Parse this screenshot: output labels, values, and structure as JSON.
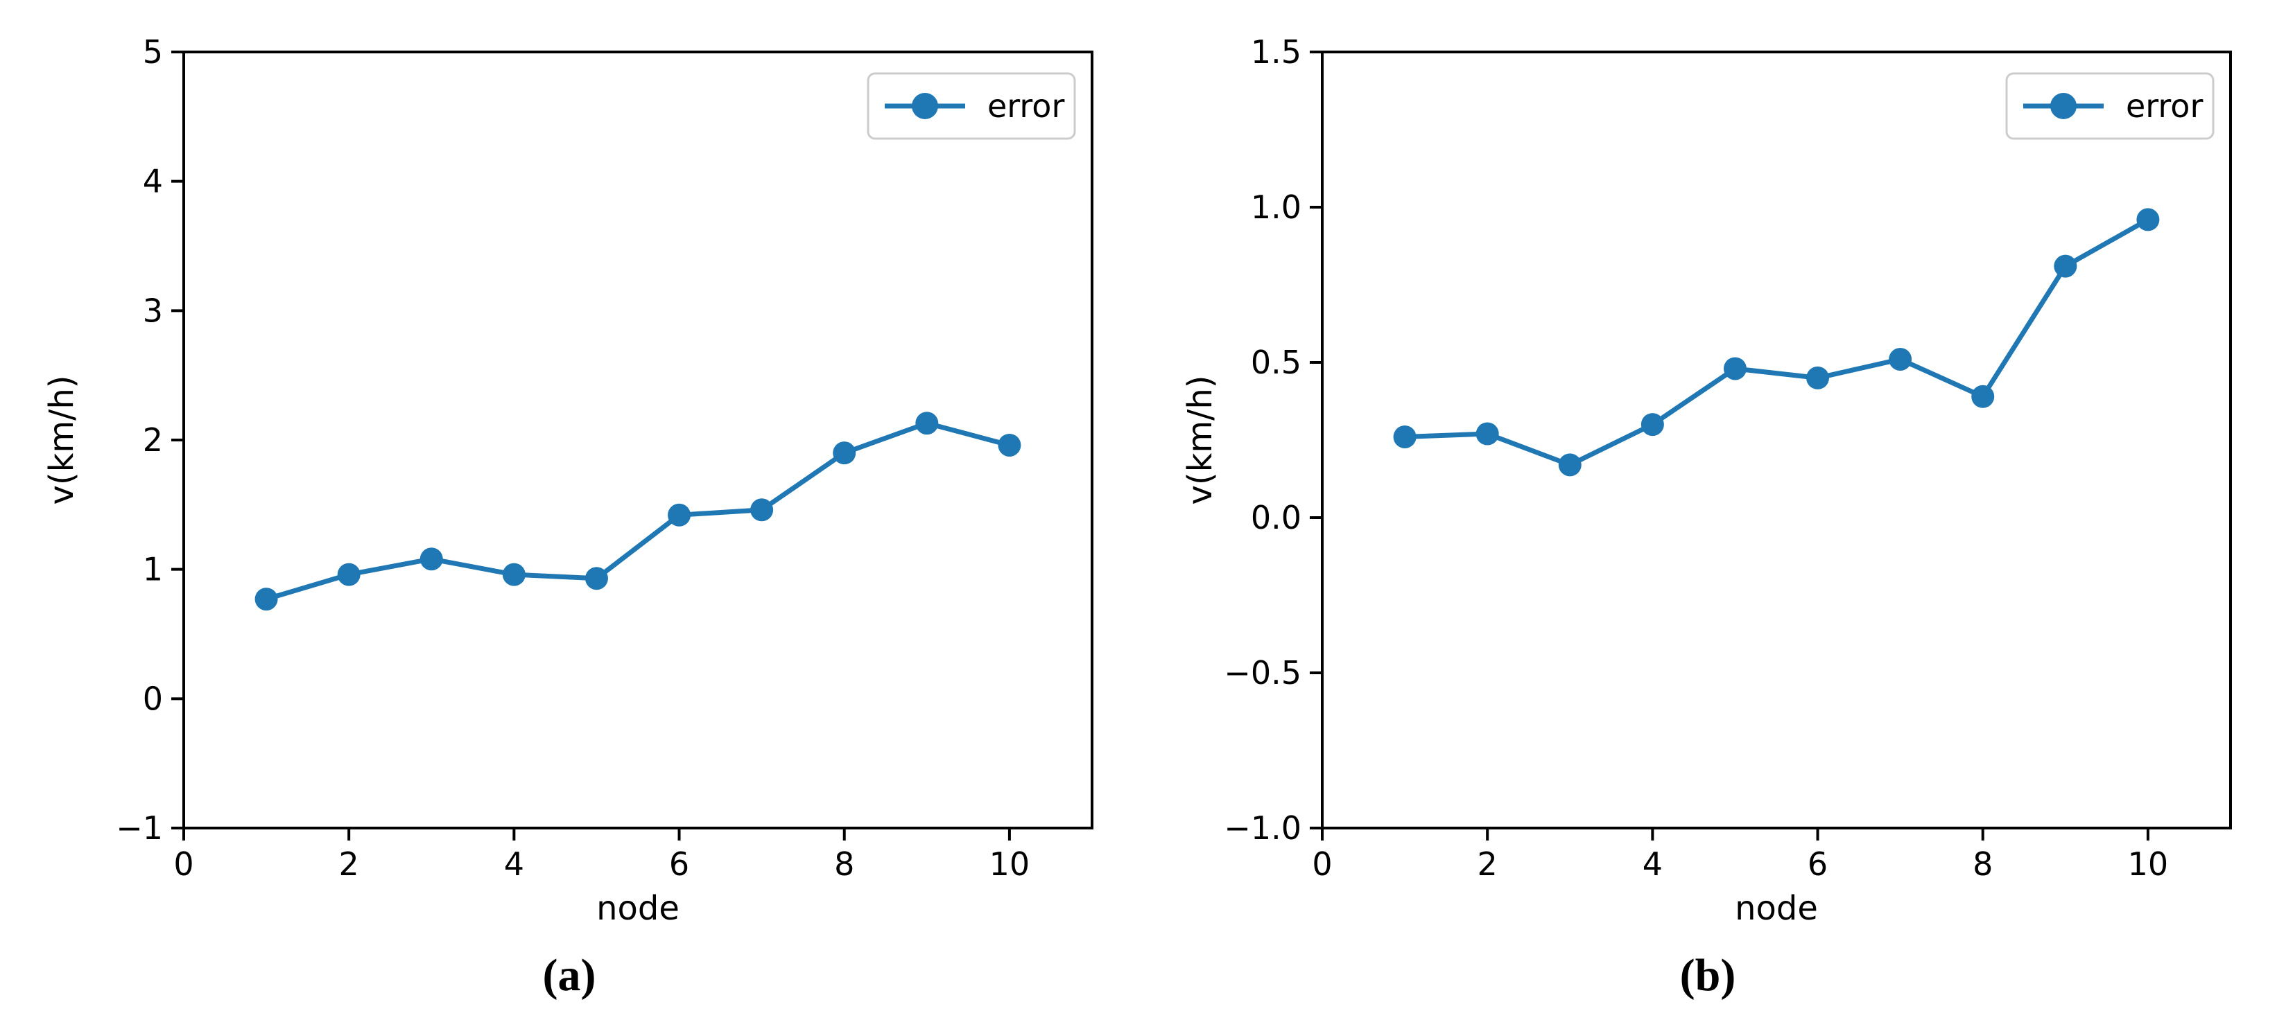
{
  "styles": {
    "accent_color": "#1f77b4",
    "spine_color": "#000000",
    "text_color": "#000000",
    "legend_border_color": "#cccccc",
    "background": "#ffffff"
  },
  "chart_data": [
    {
      "type": "line",
      "caption": "(a)",
      "title": "",
      "xlabel": "node",
      "ylabel": "v(km/h)",
      "xlim": [
        0,
        11
      ],
      "ylim": [
        -1,
        5
      ],
      "xticks": [
        0,
        2,
        4,
        6,
        8,
        10
      ],
      "xtick_labels": [
        "0",
        "2",
        "4",
        "6",
        "8",
        "10"
      ],
      "yticks": [
        -1,
        0,
        1,
        2,
        3,
        4,
        5
      ],
      "ytick_labels": [
        "−1",
        "0",
        "1",
        "2",
        "3",
        "4",
        "5"
      ],
      "grid": false,
      "legend": {
        "label": "error",
        "position": "upper right"
      },
      "marker": "o",
      "line_color": "#1f77b4",
      "series": [
        {
          "name": "error",
          "x": [
            1,
            2,
            3,
            4,
            5,
            6,
            7,
            8,
            9,
            10
          ],
          "y": [
            0.77,
            0.96,
            1.08,
            0.96,
            0.93,
            1.42,
            1.46,
            1.9,
            2.13,
            1.96
          ]
        }
      ]
    },
    {
      "type": "line",
      "caption": "(b)",
      "title": "",
      "xlabel": "node",
      "ylabel": "v(km/h)",
      "xlim": [
        0,
        11
      ],
      "ylim": [
        -1.0,
        1.5
      ],
      "xticks": [
        0,
        2,
        4,
        6,
        8,
        10
      ],
      "xtick_labels": [
        "0",
        "2",
        "4",
        "6",
        "8",
        "10"
      ],
      "yticks": [
        -1.0,
        -0.5,
        0.0,
        0.5,
        1.0,
        1.5
      ],
      "ytick_labels": [
        "−1.0",
        "−0.5",
        "0.0",
        "0.5",
        "1.0",
        "1.5"
      ],
      "grid": false,
      "legend": {
        "label": "error",
        "position": "upper right"
      },
      "marker": "o",
      "line_color": "#1f77b4",
      "series": [
        {
          "name": "error",
          "x": [
            1,
            2,
            3,
            4,
            5,
            6,
            7,
            8,
            9,
            10
          ],
          "y": [
            0.26,
            0.27,
            0.17,
            0.3,
            0.48,
            0.45,
            0.51,
            0.39,
            0.81,
            0.96
          ]
        }
      ]
    }
  ]
}
